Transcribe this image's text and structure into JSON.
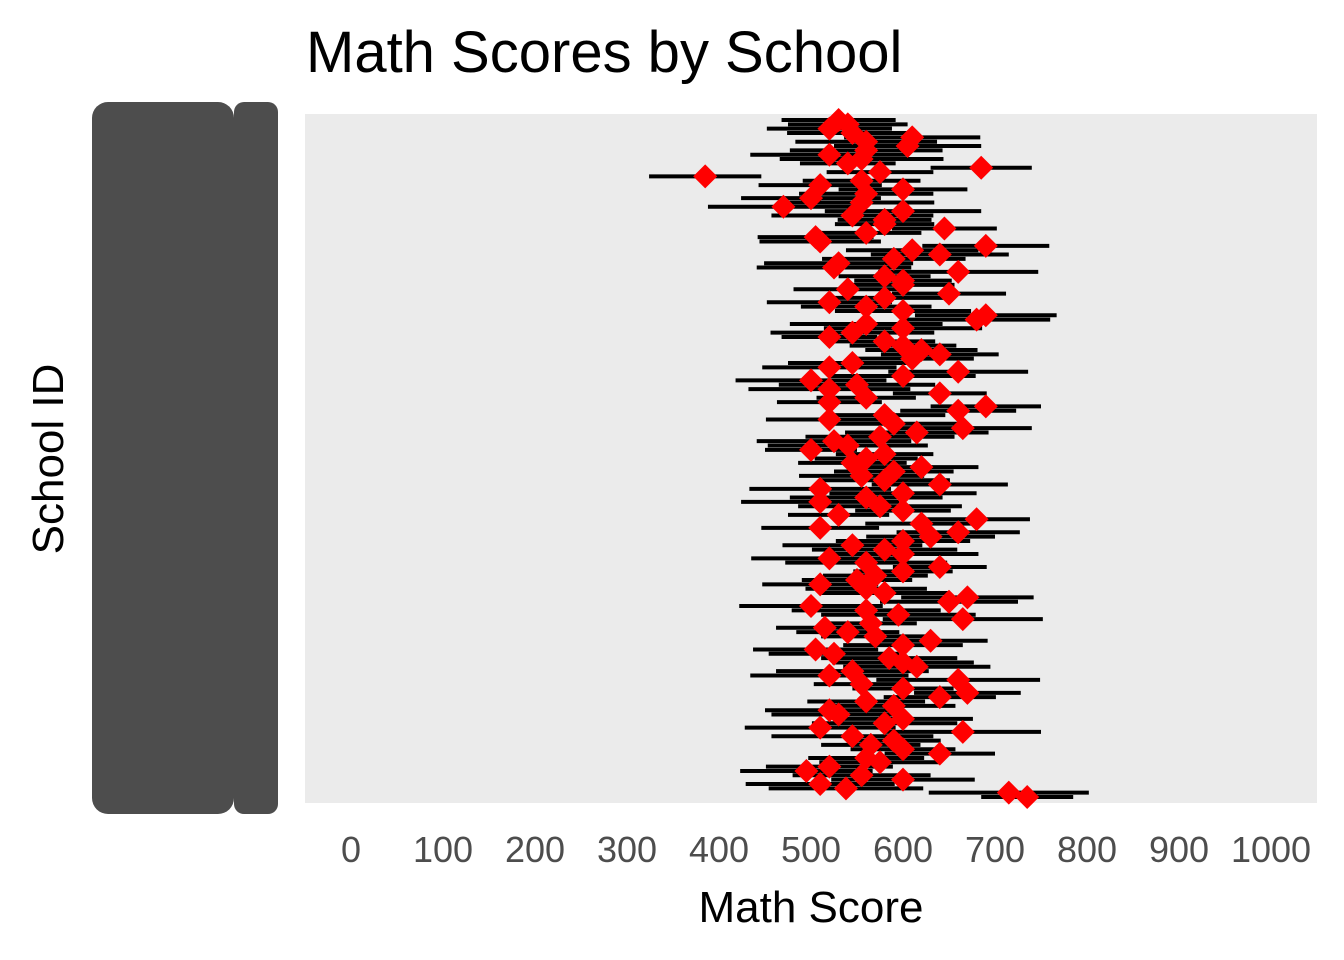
{
  "chart_data": {
    "type": "scatter",
    "title": "Math Scores by School",
    "xlabel": "Math Score",
    "ylabel": "School ID",
    "xlim": [
      -50,
      1050
    ],
    "xticks": [
      "0",
      "100",
      "200",
      "300",
      "400",
      "500",
      "600",
      "700",
      "800",
      "900",
      "1000"
    ],
    "grid": false,
    "panel_background": "#ebebeb",
    "errorbar_color": "#000000",
    "point_color": "#ff0000",
    "point_shape": "diamond",
    "series": [
      {
        "values": [
          735,
          715,
          538,
          510,
          600,
          555,
          495,
          520,
          575,
          560,
          640,
          600,
          565,
          590,
          545,
          665,
          510,
          580,
          600,
          530,
          520,
          590,
          560,
          640,
          670,
          600,
          555,
          660,
          520,
          545,
          615,
          600,
          585,
          525,
          505,
          600,
          630,
          570,
          540,
          515,
          565,
          665,
          595,
          560,
          500,
          650,
          670,
          580,
          560,
          510,
          550,
          570,
          600,
          640,
          560,
          520,
          600,
          580,
          545,
          600,
          630,
          660,
          510,
          620,
          680,
          530,
          600,
          575,
          510,
          560,
          600,
          510,
          640,
          580,
          555,
          590,
          620,
          545,
          560,
          580,
          500,
          540,
          525,
          575,
          615,
          665,
          590,
          520,
          580,
          660,
          690,
          520,
          560,
          640,
          520,
          550,
          500,
          600,
          660,
          520,
          545,
          610,
          640,
          620,
          600,
          580,
          520,
          545,
          600,
          560,
          680,
          690,
          600,
          560,
          520,
          580,
          650,
          540,
          600,
          600,
          580,
          660,
          525,
          530,
          590,
          640,
          610,
          690,
          510,
          505,
          560,
          645,
          580,
          580,
          545,
          600,
          470,
          555,
          500,
          560,
          600,
          510,
          555,
          385,
          575,
          685,
          540,
          555,
          520,
          560,
          605,
          560,
          610,
          545,
          520,
          540,
          530
        ]
      }
    ]
  }
}
